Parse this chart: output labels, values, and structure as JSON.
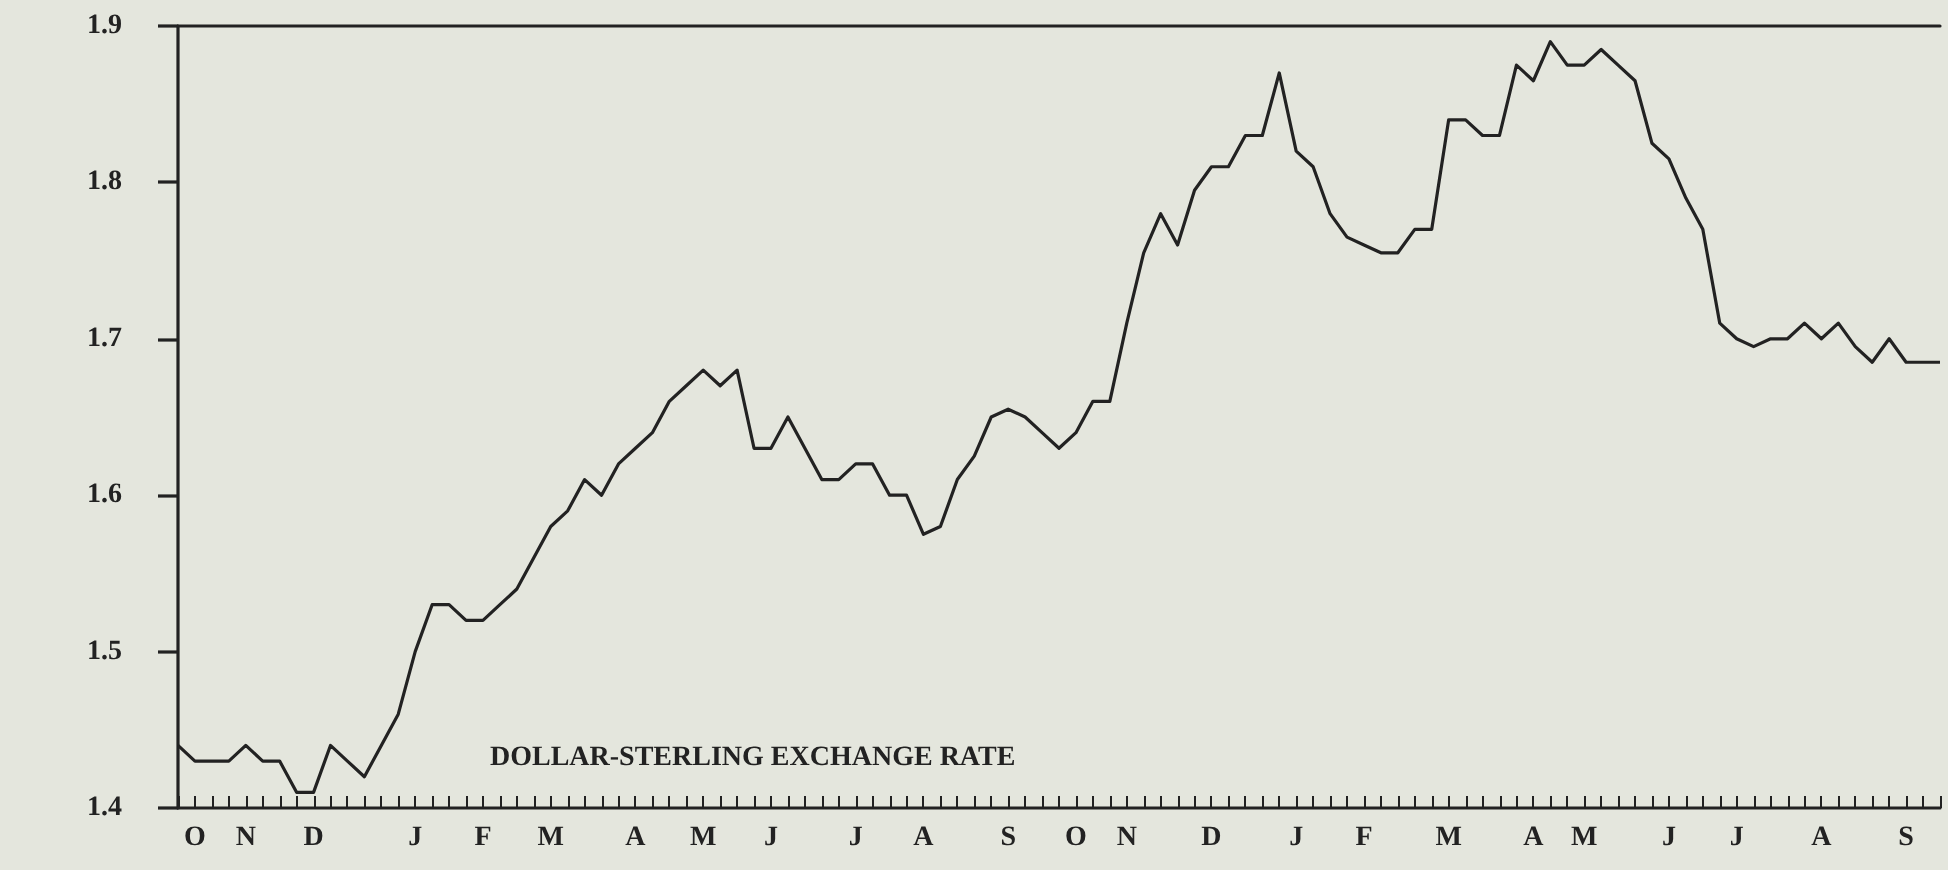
{
  "chart_data": {
    "type": "line",
    "title": "DOLLAR-STERLING EXCHANGE RATE",
    "categories": [
      null,
      "O",
      null,
      null,
      "N",
      null,
      null,
      null,
      "D",
      null,
      null,
      null,
      null,
      null,
      "J",
      null,
      null,
      null,
      "F",
      null,
      null,
      null,
      "M",
      null,
      null,
      null,
      null,
      "A",
      null,
      null,
      null,
      "M",
      null,
      null,
      null,
      "J",
      null,
      null,
      null,
      null,
      "J",
      null,
      null,
      null,
      "A",
      null,
      null,
      null,
      null,
      "S",
      null,
      null,
      null,
      "O",
      null,
      null,
      "N",
      null,
      null,
      null,
      null,
      "D",
      null,
      null,
      null,
      null,
      "J",
      null,
      null,
      null,
      "F",
      null,
      null,
      null,
      null,
      "M",
      null,
      null,
      null,
      null,
      "A",
      null,
      null,
      "M",
      null,
      null,
      null,
      null,
      "J",
      null,
      null,
      null,
      "J",
      null,
      null,
      null,
      null,
      "A",
      null,
      null,
      null,
      null,
      "S",
      null,
      null
    ],
    "series": [
      {
        "color": "#222222",
        "values": [
          1.44,
          1.43,
          1.43,
          1.43,
          1.44,
          1.43,
          1.43,
          1.41,
          1.41,
          1.44,
          1.43,
          1.42,
          1.44,
          1.46,
          1.5,
          1.53,
          1.53,
          1.52,
          1.52,
          1.53,
          1.54,
          1.56,
          1.58,
          1.59,
          1.61,
          1.6,
          1.62,
          1.63,
          1.64,
          1.66,
          1.67,
          1.68,
          1.67,
          1.68,
          1.63,
          1.63,
          1.65,
          1.63,
          1.61,
          1.61,
          1.62,
          1.62,
          1.6,
          1.6,
          1.575,
          1.58,
          1.61,
          1.625,
          1.65,
          1.655,
          1.65,
          1.64,
          1.63,
          1.64,
          1.66,
          1.66,
          1.71,
          1.755,
          1.78,
          1.76,
          1.795,
          1.81,
          1.81,
          1.83,
          1.83,
          1.87,
          1.82,
          1.81,
          1.78,
          1.765,
          1.76,
          1.755,
          1.755,
          1.77,
          1.77,
          1.84,
          1.84,
          1.83,
          1.83,
          1.875,
          1.865,
          1.89,
          1.875,
          1.875,
          1.885,
          1.875,
          1.865,
          1.825,
          1.815,
          1.79,
          1.77,
          1.71,
          1.7,
          1.695,
          1.7,
          1.7,
          1.71,
          1.7,
          1.71,
          1.695,
          1.685,
          1.7,
          1.685,
          1.685,
          1.685
        ]
      }
    ],
    "ylim": [
      1.4,
      1.9
    ],
    "yticks": [
      1.4,
      1.5,
      1.6,
      1.7,
      1.8,
      1.9
    ],
    "grid": false,
    "marker": "none",
    "line_style": "solid"
  }
}
